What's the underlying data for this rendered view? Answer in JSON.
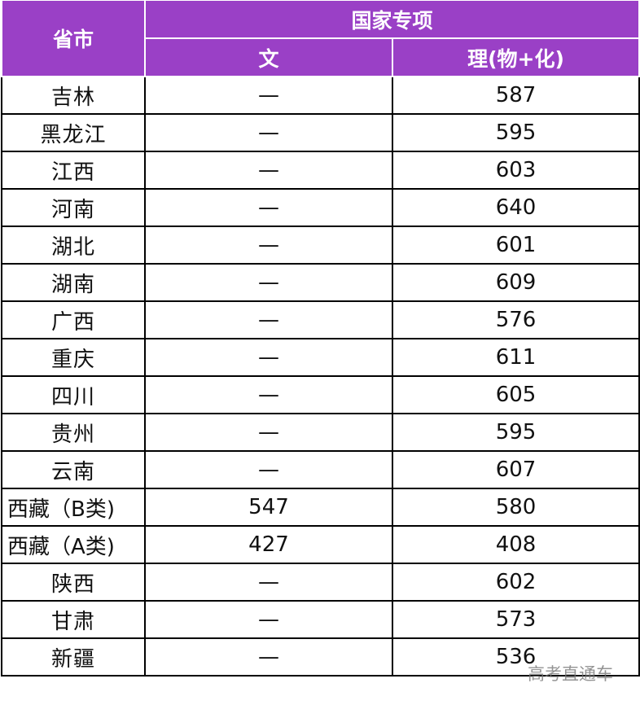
{
  "header": {
    "province": "省市",
    "group": "国家专项",
    "col_wen": "文",
    "col_li": "理(物+化)"
  },
  "colors": {
    "header_bg": "#9a40c6",
    "header_text": "#ffffff"
  },
  "rows": [
    {
      "province": "吉林",
      "wen": "—",
      "li": "587"
    },
    {
      "province": "黑龙江",
      "wen": "—",
      "li": "595"
    },
    {
      "province": "江西",
      "wen": "—",
      "li": "603"
    },
    {
      "province": "河南",
      "wen": "—",
      "li": "640"
    },
    {
      "province": "湖北",
      "wen": "—",
      "li": "601"
    },
    {
      "province": "湖南",
      "wen": "—",
      "li": "609"
    },
    {
      "province": "广西",
      "wen": "—",
      "li": "576"
    },
    {
      "province": "重庆",
      "wen": "—",
      "li": "611"
    },
    {
      "province": "四川",
      "wen": "—",
      "li": "605"
    },
    {
      "province": "贵州",
      "wen": "—",
      "li": "595"
    },
    {
      "province": "云南",
      "wen": "—",
      "li": "607"
    },
    {
      "province": "西藏（B类)",
      "wen": "547",
      "li": "580"
    },
    {
      "province": "西藏（A类)",
      "wen": "427",
      "li": "408"
    },
    {
      "province": "陕西",
      "wen": "—",
      "li": "602"
    },
    {
      "province": "甘肃",
      "wen": "—",
      "li": "573"
    },
    {
      "province": "新疆",
      "wen": "—",
      "li": "536"
    }
  ],
  "watermark": "高考直通车"
}
